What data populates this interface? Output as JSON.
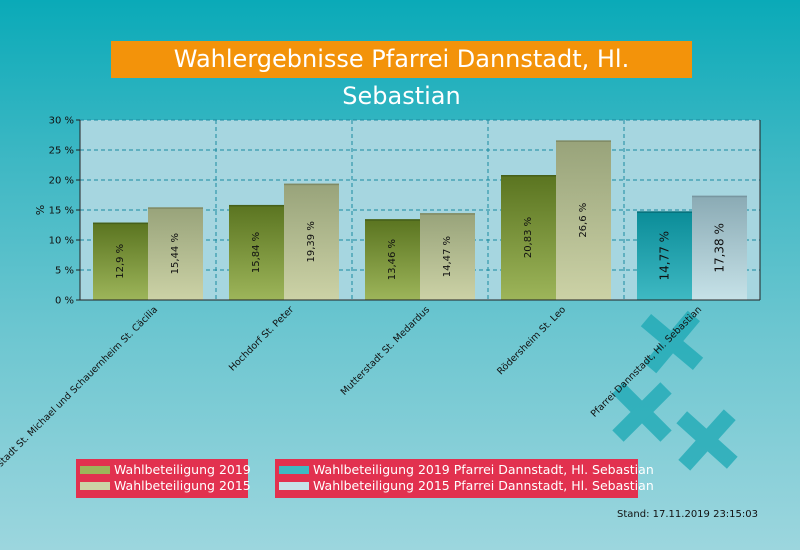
{
  "title": "Wahlergebnisse Pfarrei Dannstadt, Hl. Sebastian",
  "stand": "Stand: 17.11.2019 23:15:03",
  "chart_data": {
    "type": "bar",
    "title": "Wahlergebnisse Pfarrei Dannstadt, Hl. Sebastian",
    "ylabel": "%",
    "xlabel": "",
    "ylim": [
      0,
      30
    ],
    "yticks": [
      0,
      5,
      10,
      15,
      20,
      25,
      30
    ],
    "ytick_labels": [
      "0 %",
      "5 %",
      "10 %",
      "15 %",
      "20 %",
      "25 %",
      "30 %"
    ],
    "grid": true,
    "legend_position": "bottom",
    "categories": [
      "Dannstadt St. Michael und Schauernheim St. Cäcilia",
      "Hochdorf St. Peter",
      "Mutterstadt St. Medardus",
      "Rödersheim St. Leo",
      "Pfarrei Dannstadt, Hl. Sebastian"
    ],
    "series": [
      {
        "name": "Wahlbeteiligung 2019",
        "values": [
          12.9,
          15.84,
          13.46,
          20.83,
          14.77
        ],
        "labels": [
          "12,9 %",
          "15,84 %",
          "13,46 %",
          "20,83 %",
          "14,77 %"
        ]
      },
      {
        "name": "Wahlbeteiligung 2015",
        "values": [
          15.44,
          19.39,
          14.47,
          26.6,
          17.38
        ],
        "labels": [
          "15,44 %",
          "19,39 %",
          "14,47 %",
          "26,6 %",
          "17,38 %"
        ]
      }
    ],
    "legend": [
      "Wahlbeteiligung 2019",
      "Wahlbeteiligung 2015",
      "Wahlbeteiligung 2019 Pfarrei Dannstadt, Hl. Sebastian",
      "Wahlbeteiligung 2015 Pfarrei Dannstadt, Hl. Sebastian"
    ],
    "colors": {
      "s2019_top": "#5a7420",
      "s2019_bottom": "#9db55a",
      "s2015_top": "#98a37a",
      "s2015_bottom": "#ccd2a6",
      "p2019_top": "#0a8c98",
      "p2019_bottom": "#3fb9c3",
      "p2015_top": "#8aaab4",
      "p2015_bottom": "#c6e2e8",
      "plot_bg": "#a6d6e0",
      "grid": "#1a8aa0"
    }
  }
}
